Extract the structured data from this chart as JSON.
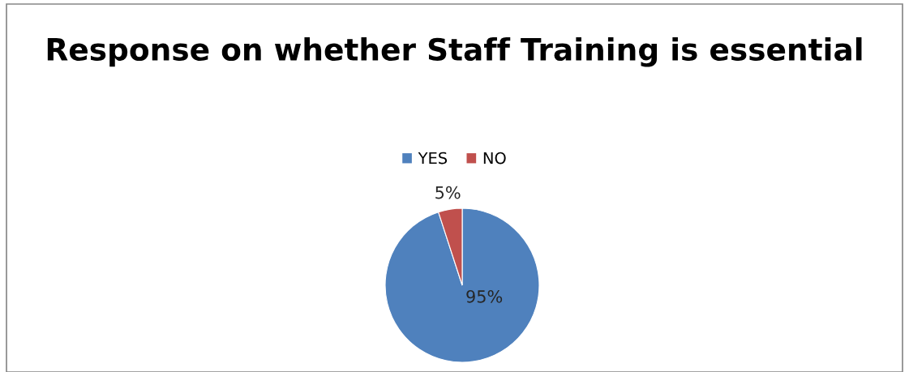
{
  "chart_data": {
    "type": "pie",
    "title": "Response on whether Staff Training is essential",
    "categories": [
      "YES",
      "NO"
    ],
    "values": [
      95,
      5
    ],
    "colors": [
      "#4f81bd",
      "#c0504d"
    ],
    "value_labels": [
      "95%",
      "5%"
    ],
    "legend": "top"
  }
}
